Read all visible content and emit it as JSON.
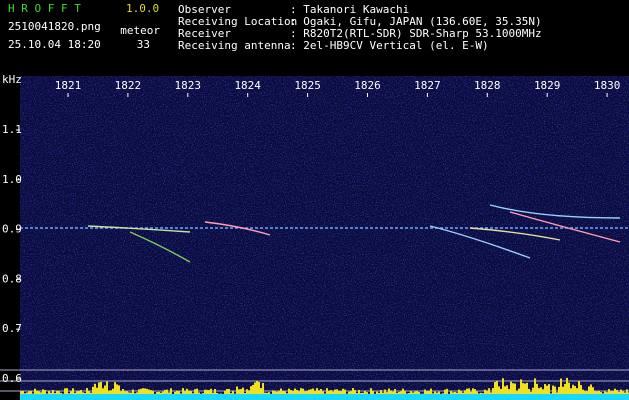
{
  "header": {
    "app_name": "H R O F F T",
    "version": "1.0.0",
    "file": "2510041820.png",
    "count_label": "meteor",
    "datetime": "25.10.04 18:20",
    "count": "33",
    "info": [
      [
        "Observer",
        ": Takanori Kawachi"
      ],
      [
        "Receiving Location",
        ": Ogaki, Gifu, JAPAN (136.60E, 35.35N)"
      ],
      [
        "Receiver",
        ": R820T2(RTL-SDR) SDR-Sharp 53.1000MHz"
      ],
      [
        "Receiving antenna",
        ": 2el-HB9CV Vertical (el. E-W)"
      ]
    ]
  },
  "spectrogram": {
    "y_unit": "kHz",
    "x_labels": [
      "1821",
      "1822",
      "1823",
      "1824",
      "1825",
      "1826",
      "1827",
      "1828",
      "1829",
      "1830"
    ],
    "y_labels": [
      "1.1",
      "1.0",
      "0.9",
      "0.8",
      "0.7",
      "0.6"
    ]
  }
}
